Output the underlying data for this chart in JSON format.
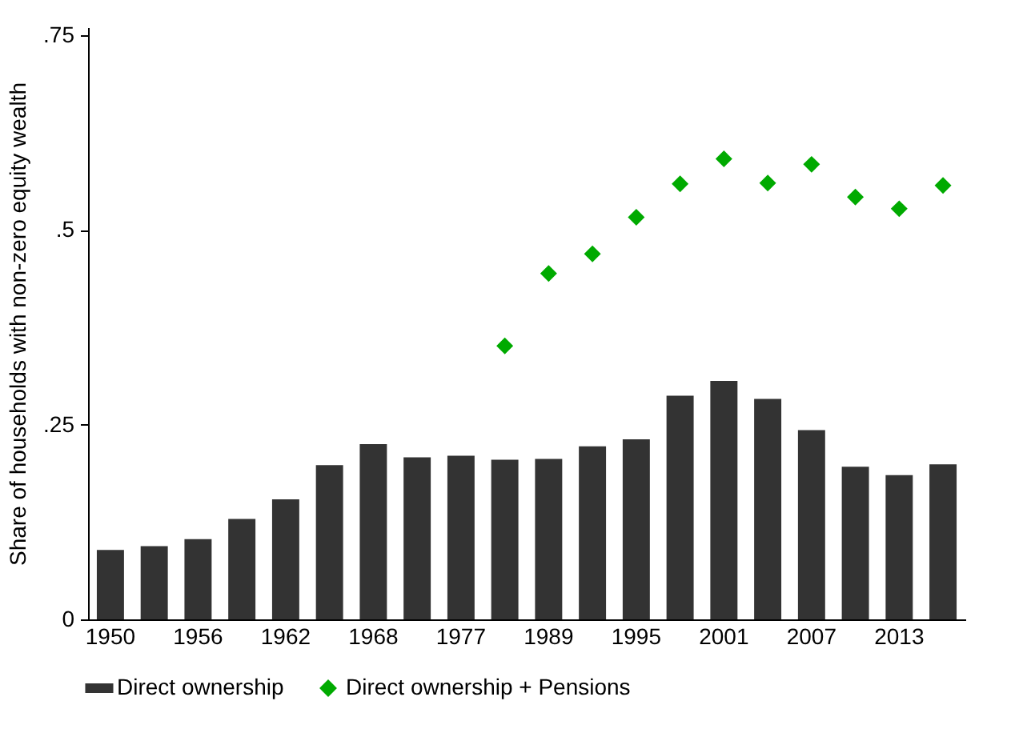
{
  "chart_data": {
    "type": "bar",
    "ylabel": "Share of households with non-zero equity wealth",
    "categories": [
      "1950",
      null,
      "1956",
      null,
      "1962",
      null,
      "1968",
      null,
      "1977",
      null,
      "1989",
      null,
      "1995",
      null,
      "2001",
      null,
      "2007",
      null,
      "2013",
      null
    ],
    "series": [
      {
        "name": "Direct ownership",
        "color": "#333333",
        "values": [
          0.089,
          0.094,
          0.103,
          0.129,
          0.154,
          0.198,
          0.225,
          0.208,
          0.21,
          0.205,
          0.206,
          0.222,
          0.231,
          0.287,
          0.306,
          0.283,
          0.243,
          0.196,
          0.185,
          0.199
        ]
      },
      {
        "name": "Direct ownership + Pensions",
        "type": "scatter",
        "color": "#00aa00",
        "marker": "diamond",
        "values": [
          null,
          null,
          null,
          null,
          null,
          null,
          null,
          null,
          null,
          0.351,
          0.444,
          0.469,
          0.516,
          0.559,
          0.591,
          0.56,
          0.584,
          0.542,
          0.527,
          0.557
        ]
      }
    ],
    "ylim": [
      0,
      0.76
    ],
    "yticks": [
      0,
      {
        "value": 0.25,
        "label": ".25"
      },
      {
        "value": 0.5,
        "label": ".5"
      },
      {
        "value": 0.75,
        "label": ".75"
      }
    ],
    "grid": false,
    "legend": "bottom"
  }
}
